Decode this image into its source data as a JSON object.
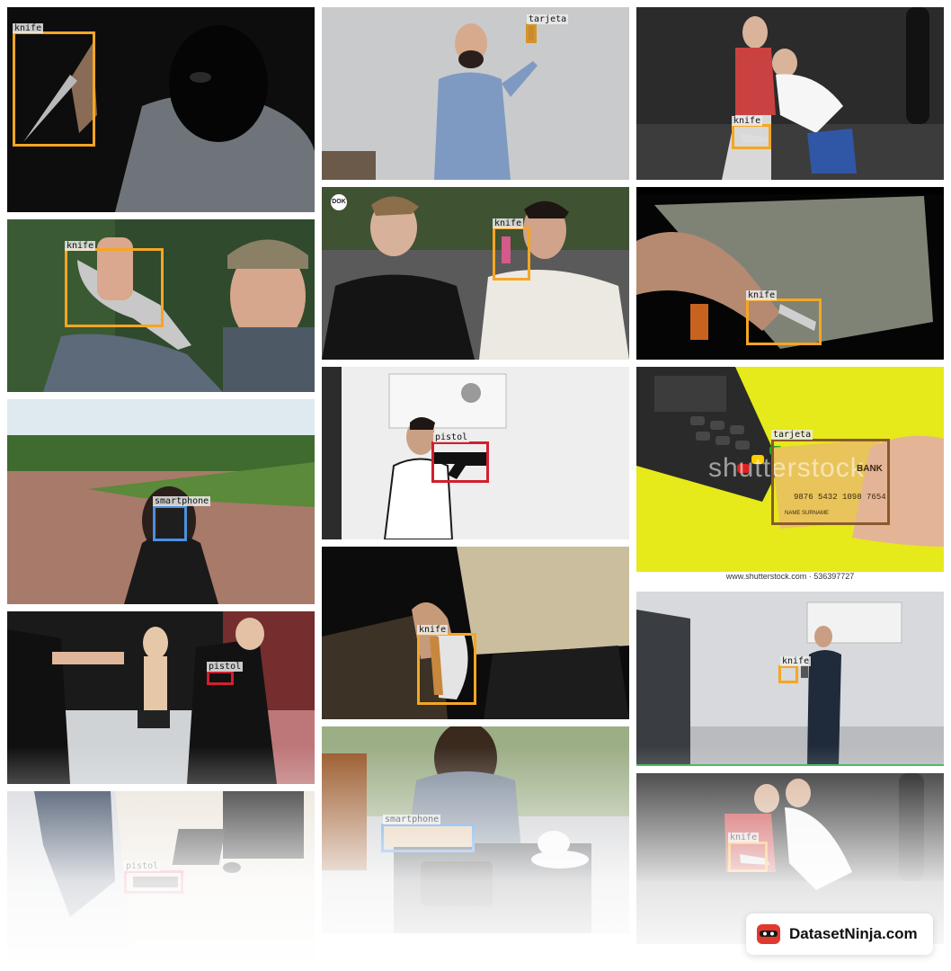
{
  "labels": {
    "knife": "knife",
    "tarjeta": "tarjeta",
    "pistol": "pistol",
    "smartphone": "smartphone"
  },
  "watermark": "shutterstock",
  "credit": "www.shutterstock.com · 536397727",
  "brand": "DatasetNinja.com",
  "dok": "DOK",
  "card": {
    "bank": "BANK",
    "number": "9876 5432 1098 7654",
    "name": "NAME SURNAME"
  },
  "colors": {
    "knife": "#f5a623",
    "pistol": "#d0202e",
    "smartphone": "#4a90e2",
    "tarjeta": "#8b5a2b"
  }
}
